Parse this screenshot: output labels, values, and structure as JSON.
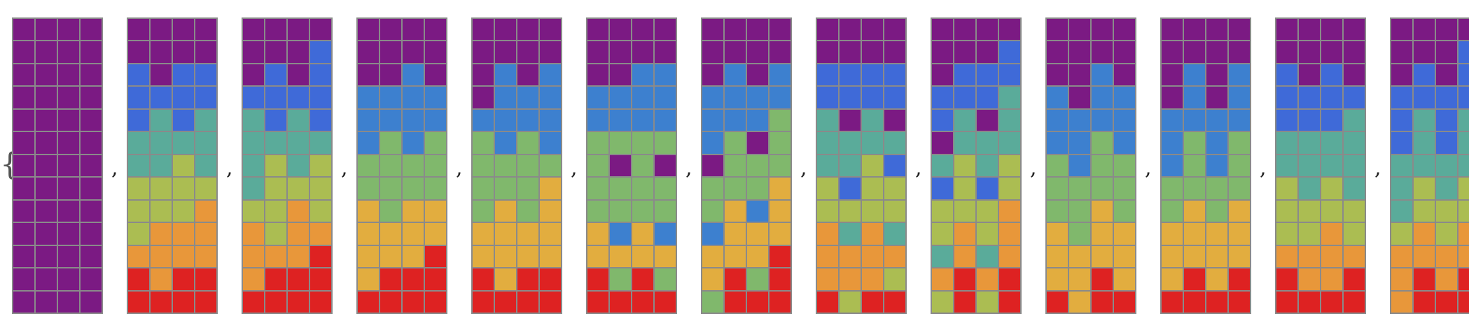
{
  "palette": {
    "P": "#7b1a83",
    "B": "#3f6ad8",
    "C": "#3d80cf",
    "T": "#5aab9a",
    "G": "#80b86c",
    "Y": "#abbd52",
    "O": "#e8973a",
    "A": "#e2ad3f",
    "R": "#de2222"
  },
  "open_brace": "{",
  "close_brace": "}",
  "separator": ",",
  "grids": [
    [
      "PPPP",
      "PPPP",
      "PPPP",
      "PPPP",
      "PPPP",
      "PPPP",
      "PPPP",
      "PPPP",
      "PPPP",
      "PPPP",
      "PPPP",
      "PPPP",
      "PPPP"
    ],
    [
      "PPPP",
      "PPPP",
      "BPBB",
      "BBBB",
      "BTBT",
      "TTTT",
      "TTYT",
      "YYYY",
      "YYYO",
      "YOOO",
      "OOOO",
      "RORR",
      "RRRR"
    ],
    [
      "PPPP",
      "PPPB",
      "PBPB",
      "BBBB",
      "TBTB",
      "TTTT",
      "TYTY",
      "TYYY",
      "YYOY",
      "OYOO",
      "OOOR",
      "ORRR",
      "RRRR"
    ],
    [
      "PPPP",
      "PPPP",
      "PPCP",
      "CCCC",
      "CCCC",
      "CGCG",
      "GGGG",
      "GGGG",
      "AGAA",
      "AAAA",
      "AAAR",
      "ARRR",
      "RRRR"
    ],
    [
      "PPPP",
      "PPPP",
      "PCPC",
      "PCCC",
      "CCCC",
      "GCGC",
      "GGGG",
      "GGGA",
      "GAGA",
      "AAAA",
      "AAAA",
      "RARR",
      "RRRR"
    ],
    [
      "PPPP",
      "PPPP",
      "PPCC",
      "CCCC",
      "CCCC",
      "GGGG",
      "GPGP",
      "GGGG",
      "GGGG",
      "ACAC",
      "AAAA",
      "RGRG",
      "RRRR"
    ],
    [
      "PPPP",
      "PPPP",
      "PCPC",
      "CCCC",
      "CCCG",
      "CGPG",
      "PGGG",
      "GGGA",
      "GACA",
      "CAAA",
      "AAAR",
      "ARGR",
      "GRRR"
    ],
    [
      "PPPP",
      "PPPP",
      "BBBB",
      "BBBB",
      "TPTP",
      "TTTT",
      "TTYB",
      "YBYY",
      "YYYY",
      "OTOT",
      "OOOO",
      "OOOY",
      "RYRR"
    ],
    [
      "PPPP",
      "PPPB",
      "PBBB",
      "BBBT",
      "BTPT",
      "PTTT",
      "TYTY",
      "BYBY",
      "YYYO",
      "YOYO",
      "TOTO",
      "OROR",
      "YRYR"
    ],
    [
      "PPPP",
      "PPPP",
      "PPCP",
      "CPCC",
      "CCCC",
      "CCGC",
      "GCGG",
      "GGGG",
      "GGAG",
      "AGAA",
      "AAAA",
      "AARA",
      "RARR"
    ],
    [
      "PPPP",
      "PPPP",
      "PCPC",
      "PCPC",
      "CCCC",
      "CGCG",
      "CGCG",
      "GGGG",
      "GAGA",
      "AAAA",
      "AAAA",
      "ARAR",
      "RRRR"
    ],
    [
      "PPPP",
      "PPPP",
      "BPBP",
      "BBBB",
      "BBBT",
      "TTTT",
      "TTTT",
      "YTYT",
      "YYYY",
      "YYOY",
      "OOOO",
      "ROOR",
      "RRRR"
    ],
    [
      "PPPP",
      "PPPB",
      "PBPB",
      "BBBB",
      "BTBT",
      "BTBT",
      "TTTT",
      "TYTY",
      "TYYY",
      "YOYO",
      "OOOO",
      "OROR",
      "ORRR"
    ]
  ]
}
